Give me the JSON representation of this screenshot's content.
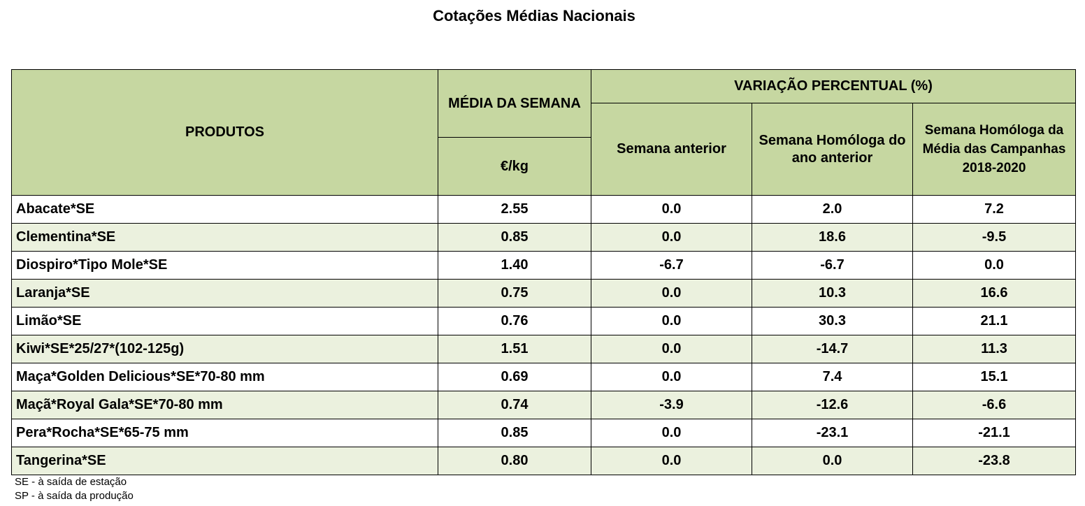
{
  "title": "Cotações Médias Nacionais",
  "headers": {
    "produtos": "PRODUTOS",
    "media_semana": "MÉDIA DA SEMANA",
    "unit": "€/kg",
    "variacao": "VARIAÇÃO PERCENTUAL (%)",
    "semana_anterior": "Semana anterior",
    "homologa_ano_anterior": "Semana Homóloga do ano anterior",
    "homologa_campanhas": "Semana Homóloga da Média das Campanhas 2018-2020"
  },
  "rows": [
    {
      "produto": "Abacate*SE",
      "media": "2.55",
      "anterior": "0.0",
      "homologa": "2.0",
      "campanhas": "7.2"
    },
    {
      "produto": "Clementina*SE",
      "media": "0.85",
      "anterior": "0.0",
      "homologa": "18.6",
      "campanhas": "-9.5"
    },
    {
      "produto": "Diospiro*Tipo Mole*SE",
      "media": "1.40",
      "anterior": "-6.7",
      "homologa": "-6.7",
      "campanhas": "0.0"
    },
    {
      "produto": "Laranja*SE",
      "media": "0.75",
      "anterior": "0.0",
      "homologa": "10.3",
      "campanhas": "16.6"
    },
    {
      "produto": "Limão*SE",
      "media": "0.76",
      "anterior": "0.0",
      "homologa": "30.3",
      "campanhas": "21.1"
    },
    {
      "produto": "Kiwi*SE*25/27*(102-125g)",
      "media": "1.51",
      "anterior": "0.0",
      "homologa": "-14.7",
      "campanhas": "11.3"
    },
    {
      "produto": "Maça*Golden Delicious*SE*70-80 mm",
      "media": "0.69",
      "anterior": "0.0",
      "homologa": "7.4",
      "campanhas": "15.1"
    },
    {
      "produto": "Maçã*Royal Gala*SE*70-80 mm",
      "media": "0.74",
      "anterior": "-3.9",
      "homologa": "-12.6",
      "campanhas": "-6.6"
    },
    {
      "produto": "Pera*Rocha*SE*65-75 mm",
      "media": "0.85",
      "anterior": "0.0",
      "homologa": "-23.1",
      "campanhas": "-21.1"
    },
    {
      "produto": "Tangerina*SE",
      "media": "0.80",
      "anterior": "0.0",
      "homologa": "0.0",
      "campanhas": "-23.8"
    }
  ],
  "notes": [
    "SE - à saída de estação",
    "SP - à saída da produção"
  ]
}
